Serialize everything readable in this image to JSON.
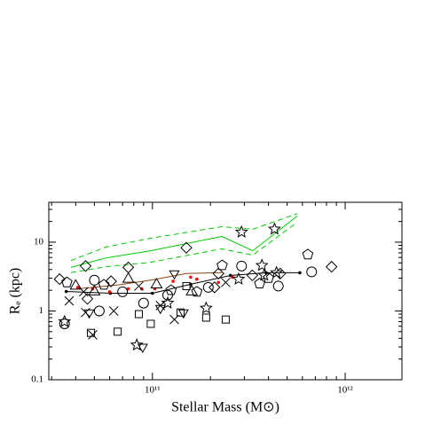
{
  "chart_data": {
    "type": "scatter",
    "xlabel": "Stellar Mass (M⊙)",
    "ylabel": "Rₑ (kpc)",
    "xlog": true,
    "ylog": true,
    "xlim": [
      29000000000.0,
      1970000000000.0
    ],
    "ylim": [
      0.1,
      38
    ],
    "xticks": [
      {
        "value": 100000000000.0,
        "label": "10¹¹"
      },
      {
        "value": 1000000000000.0,
        "label": "10¹²"
      }
    ],
    "yticks": [
      0.1,
      1,
      10
    ],
    "series": [
      {
        "color": "#00cc00",
        "line": "solid",
        "x": [
          37700000000.0,
          57500000000.0,
          98000000000.0,
          229000000000.0,
          332000000000.0,
          564000000000.0
        ],
        "values": [
          4.3,
          5.9,
          7.5,
          12.1,
          7.5,
          24
        ]
      },
      {
        "color": "#00cc00",
        "line": "dashed",
        "x": [
          37700000000.0,
          57500000000.0,
          98000000000.0,
          229000000000.0,
          332000000000.0,
          564000000000.0
        ],
        "values": [
          5.4,
          8.5,
          11.4,
          16.8,
          15.4,
          26
        ]
      },
      {
        "color": "#00cc00",
        "line": "dashed",
        "x": [
          37700000000.0,
          57500000000.0,
          98000000000.0,
          229000000000.0,
          332000000000.0,
          564000000000.0
        ],
        "values": [
          3.6,
          4.4,
          5.1,
          8.0,
          6.5,
          19.5
        ]
      },
      {
        "color": "#8b4513",
        "line": "solid",
        "x": [
          41000000000.0,
          67000000000.0,
          98000000000.0,
          150000000000.0,
          229000000000.0
        ],
        "values": [
          2.1,
          2.4,
          2.8,
          3.5,
          3.6
        ]
      },
      {
        "color": "#000000",
        "line": "solid",
        "marker": "dot",
        "x": [
          35700000000.0,
          60500000000.0,
          100000000000.0,
          158000000000.0,
          254000000000.0,
          389000000000.0,
          582000000000.0
        ],
        "values": [
          1.92,
          1.81,
          1.81,
          2.44,
          3.28,
          3.59,
          3.59
        ]
      },
      {
        "color": "#ff0000",
        "marker": "dot",
        "x": [
          41000000000.0,
          49000000000.0,
          60000000000.0,
          75000000000.0,
          88000000000.0,
          103000000000.0,
          128000000000.0,
          158000000000.0,
          170000000000.0,
          220000000000.0,
          260000000000.0
        ],
        "values": [
          2.2,
          2.1,
          1.9,
          2.1,
          2.1,
          2.1,
          2.7,
          3.1,
          2.9,
          2.6,
          3.1
        ]
      },
      {
        "color": "#000000",
        "marker": "diamond",
        "x": [
          45000000000.0,
          33000000000.0,
          46000000000.0,
          75000000000.0,
          150000000000.0,
          220000000000.0,
          330000000000.0,
          460000000000.0,
          850000000000.0,
          210000000000.0,
          61000000000.0
        ],
        "values": [
          4.5,
          2.9,
          1.5,
          4.3,
          8.3,
          3.5,
          3.3,
          3.5,
          4.4,
          2.2,
          2.7
        ]
      },
      {
        "color": "#000000",
        "marker": "square",
        "x": [
          48000000000.0,
          66000000000.0,
          98000000000.0,
          140000000000.0,
          190000000000.0,
          240000000000.0,
          85000000000.0,
          150000000000.0
        ],
        "values": [
          0.48,
          0.5,
          0.65,
          0.95,
          0.8,
          0.75,
          0.9,
          2.3
        ]
      },
      {
        "color": "#000000",
        "marker": "circle",
        "x": [
          35000000000.0,
          53000000000.0,
          90000000000.0,
          120000000000.0,
          195000000000.0,
          450000000000.0,
          670000000000.0,
          50000000000.0,
          290000000000.0,
          70000000000.0
        ],
        "values": [
          0.65,
          1.0,
          1.3,
          1.7,
          2.2,
          2.3,
          3.7,
          2.8,
          4.5,
          1.9
        ]
      },
      {
        "color": "#000000",
        "marker": "cross",
        "x": [
          37000000000.0,
          44000000000.0,
          49000000000.0,
          63000000000.0,
          85000000000.0,
          110000000000.0,
          130000000000.0,
          45000000000.0,
          240000000000.0
        ],
        "values": [
          1.4,
          1.9,
          0.45,
          1.0,
          2.3,
          1.2,
          0.75,
          0.95,
          2.6
        ]
      },
      {
        "color": "#000000",
        "marker": "triangle-down",
        "x": [
          47000000000.0,
          89000000000.0,
          110000000000.0,
          145000000000.0,
          130000000000.0
        ],
        "values": [
          0.95,
          0.3,
          1.1,
          0.95,
          3.5
        ]
      },
      {
        "color": "#000000",
        "marker": "triangle",
        "x": [
          50000000000.0,
          75000000000.0,
          40000000000.0,
          105000000000.0,
          160000000000.0
        ],
        "values": [
          1.9,
          2.9,
          2.3,
          2.4,
          1.9
        ]
      },
      {
        "color": "#000000",
        "marker": "pentagon",
        "x": [
          36000000000.0,
          56000000000.0,
          125000000000.0,
          170000000000.0,
          230000000000.0,
          360000000000.0,
          640000000000.0,
          400000000000.0
        ],
        "values": [
          2.6,
          2.4,
          2.0,
          1.9,
          4.6,
          2.5,
          6.6,
          3.0
        ]
      },
      {
        "color": "#000000",
        "marker": "star",
        "x": [
          35000000000.0,
          83000000000.0,
          190000000000.0,
          290000000000.0,
          430000000000.0,
          370000000000.0,
          380000000000.0,
          280000000000.0,
          440000000000.0,
          120000000000.0
        ],
        "values": [
          0.7,
          0.32,
          1.1,
          14,
          15.5,
          4.6,
          3.3,
          2.9,
          3.6,
          1.3
        ]
      }
    ]
  }
}
